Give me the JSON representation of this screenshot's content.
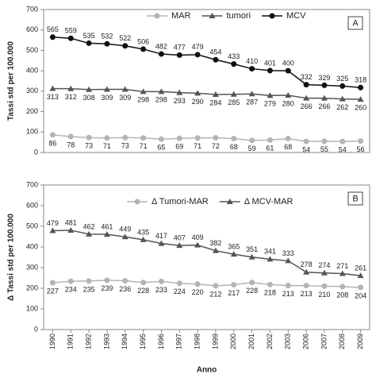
{
  "chart_data": [
    {
      "type": "line",
      "panel_label": "A",
      "y_label": "Tassi std per 100.000",
      "ylim": [
        0,
        700
      ],
      "yticks": [
        0,
        100,
        200,
        300,
        400,
        500,
        600,
        700
      ],
      "series": [
        {
          "name": "MAR",
          "color": "#b4b4b4",
          "marker": "circle",
          "label_position": "below",
          "values": [
            86,
            78,
            73,
            71,
            73,
            71,
            65,
            69,
            71,
            72,
            68,
            59,
            61,
            68,
            54,
            55,
            54,
            56
          ]
        },
        {
          "name": "tumori",
          "color": "#555555",
          "marker": "triangle",
          "label_position": "below",
          "values": [
            313,
            312,
            308,
            309,
            309,
            298,
            298,
            293,
            290,
            284,
            285,
            287,
            279,
            280,
            266,
            266,
            262,
            260
          ]
        },
        {
          "name": "MCV",
          "color": "#111111",
          "marker": "circle",
          "label_position": "above",
          "values": [
            565,
            559,
            535,
            532,
            522,
            506,
            482,
            477,
            479,
            454,
            433,
            410,
            401,
            400,
            332,
            329,
            325,
            318
          ]
        }
      ]
    },
    {
      "type": "line",
      "panel_label": "B",
      "y_label": "Δ Tassi std per 100.000",
      "x_label": "Anno",
      "categories": [
        "1990",
        "1991",
        "1992",
        "1993",
        "1994",
        "1995",
        "1996",
        "1997",
        "1998",
        "1999",
        "2000",
        "2001",
        "2002",
        "2003",
        "2006",
        "2007",
        "2008",
        "2009"
      ],
      "ylim": [
        0,
        700
      ],
      "yticks": [
        0,
        100,
        200,
        300,
        400,
        500,
        600,
        700
      ],
      "series": [
        {
          "name": "Δ Tumori-MAR",
          "color": "#b4b4b4",
          "marker": "circle",
          "label_position": "below",
          "values": [
            227,
            234,
            235,
            239,
            236,
            228,
            233,
            224,
            220,
            212,
            217,
            228,
            218,
            213,
            213,
            210,
            208,
            204
          ]
        },
        {
          "name": "Δ MCV-MAR",
          "color": "#555555",
          "marker": "triangle",
          "label_position": "above",
          "values": [
            479,
            481,
            462,
            461,
            449,
            435,
            417,
            407,
            409,
            382,
            365,
            351,
            341,
            333,
            278,
            274,
            271,
            261
          ]
        }
      ]
    }
  ]
}
